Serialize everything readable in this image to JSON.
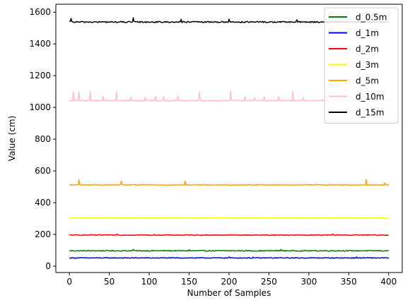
{
  "chart_data": {
    "type": "line",
    "title": "",
    "xlabel": "Number of Samples",
    "ylabel": "Value (cm)",
    "xlim": [
      -17,
      417
    ],
    "ylim": [
      -40,
      1650
    ],
    "xticks": [
      0,
      50,
      100,
      150,
      200,
      250,
      300,
      350,
      400
    ],
    "yticks": [
      0,
      200,
      400,
      600,
      800,
      1000,
      1200,
      1400,
      1600
    ],
    "grid": false,
    "legend_position": "top-right",
    "samples": 401,
    "series": [
      {
        "name": "d_0.5m",
        "color": "#008000",
        "base": 97,
        "noise": 3,
        "spikes": [
          [
            80,
            106
          ],
          [
            150,
            104
          ],
          [
            265,
            106
          ]
        ]
      },
      {
        "name": "d_1m",
        "color": "#0000ff",
        "base": 52,
        "noise": 2.5,
        "spikes": [
          [
            200,
            58
          ],
          [
            230,
            57
          ],
          [
            360,
            58
          ]
        ]
      },
      {
        "name": "d_2m",
        "color": "#ff0000",
        "base": 196,
        "noise": 2.5,
        "spikes": [
          [
            60,
            202
          ],
          [
            330,
            203
          ]
        ]
      },
      {
        "name": "d_3m",
        "color": "#ffff00",
        "base": 303,
        "noise": 1.5,
        "spikes": []
      },
      {
        "name": "d_5m",
        "color": "#ffa500",
        "base": 512,
        "noise": 3,
        "spikes": [
          [
            12,
            545
          ],
          [
            65,
            537
          ],
          [
            145,
            537
          ],
          [
            372,
            546
          ],
          [
            395,
            525
          ]
        ]
      },
      {
        "name": "d_10m",
        "color": "#ffc0cb",
        "base": 1043,
        "noise": 4,
        "spikes": [
          [
            5,
            1095
          ],
          [
            12,
            1098
          ],
          [
            26,
            1100
          ],
          [
            42,
            1070
          ],
          [
            59,
            1100
          ],
          [
            77,
            1065
          ],
          [
            95,
            1065
          ],
          [
            108,
            1070
          ],
          [
            118,
            1068
          ],
          [
            136,
            1072
          ],
          [
            163,
            1100
          ],
          [
            202,
            1103
          ],
          [
            220,
            1068
          ],
          [
            232,
            1064
          ],
          [
            244,
            1068
          ],
          [
            262,
            1070
          ],
          [
            280,
            1100
          ],
          [
            293,
            1062
          ],
          [
            322,
            1100
          ]
        ]
      },
      {
        "name": "d_15m",
        "color": "#000000",
        "base": 1538,
        "noise": 4,
        "spikes": [
          [
            2,
            1560
          ],
          [
            80,
            1565
          ],
          [
            140,
            1555
          ],
          [
            200,
            1556
          ],
          [
            285,
            1552
          ]
        ]
      }
    ]
  }
}
